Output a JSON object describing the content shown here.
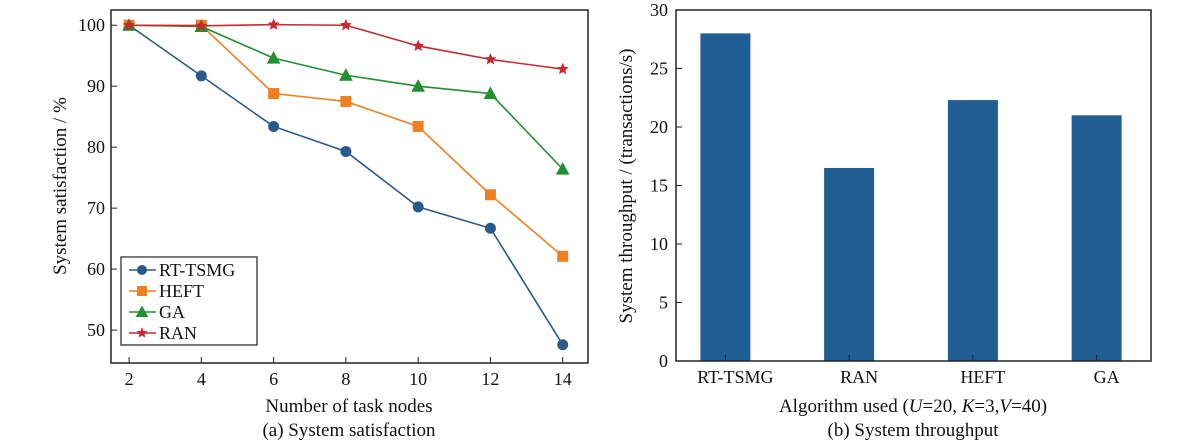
{
  "chart_data": [
    {
      "type": "line",
      "xlabel": "Number of task nodes",
      "ylabel": "System satisfaction / %",
      "caption": "(a) System satisfaction",
      "x": [
        2,
        4,
        6,
        8,
        10,
        12,
        14
      ],
      "xticks": [
        "2",
        "4",
        "6",
        "8",
        "10",
        "12",
        "14"
      ],
      "yticks": [
        "50",
        "60",
        "70",
        "80",
        "90",
        "100"
      ],
      "xlim": [
        1.5,
        14.7
      ],
      "ylim": [
        44.6,
        102.5
      ],
      "legend_position": "bottom-left",
      "grid": false,
      "series": [
        {
          "name": "RT-TSMG",
          "color": "#2a5a8c",
          "marker": "circle",
          "values": [
            100,
            91.7,
            83.4,
            79.3,
            70.2,
            66.7,
            47.6
          ]
        },
        {
          "name": "HEFT",
          "color": "#f07f22",
          "marker": "square",
          "values": [
            100,
            100,
            88.8,
            87.5,
            83.4,
            72.2,
            62.1
          ]
        },
        {
          "name": "GA",
          "color": "#229030",
          "marker": "triangle",
          "values": [
            100,
            99.8,
            94.6,
            91.8,
            90.0,
            88.8,
            76.4
          ]
        },
        {
          "name": "RAN",
          "color": "#c8282e",
          "marker": "star",
          "values": [
            100,
            99.9,
            100.1,
            100,
            96.6,
            94.4,
            92.8
          ]
        }
      ]
    },
    {
      "type": "bar",
      "xlabel_prefix": "Algorithm used (",
      "xlabel_parts": [
        {
          "text": "U",
          "italic": true
        },
        {
          "text": "=20, ",
          "italic": false
        },
        {
          "text": "K",
          "italic": true
        },
        {
          "text": "=3,",
          "italic": false
        },
        {
          "text": "V",
          "italic": true
        },
        {
          "text": "=40)",
          "italic": false
        }
      ],
      "ylabel": "System throughput / (transactions/s)",
      "caption": "(b) System throughput",
      "categories": [
        "RT-TSMG",
        "RAN",
        "HEFT",
        "GA"
      ],
      "values": [
        28.0,
        16.5,
        22.3,
        21.0
      ],
      "yticks": [
        "0",
        "5",
        "10",
        "15",
        "20",
        "25",
        "30"
      ],
      "ylim": [
        0,
        30
      ],
      "color": "#1f5d93",
      "grid": false
    }
  ]
}
